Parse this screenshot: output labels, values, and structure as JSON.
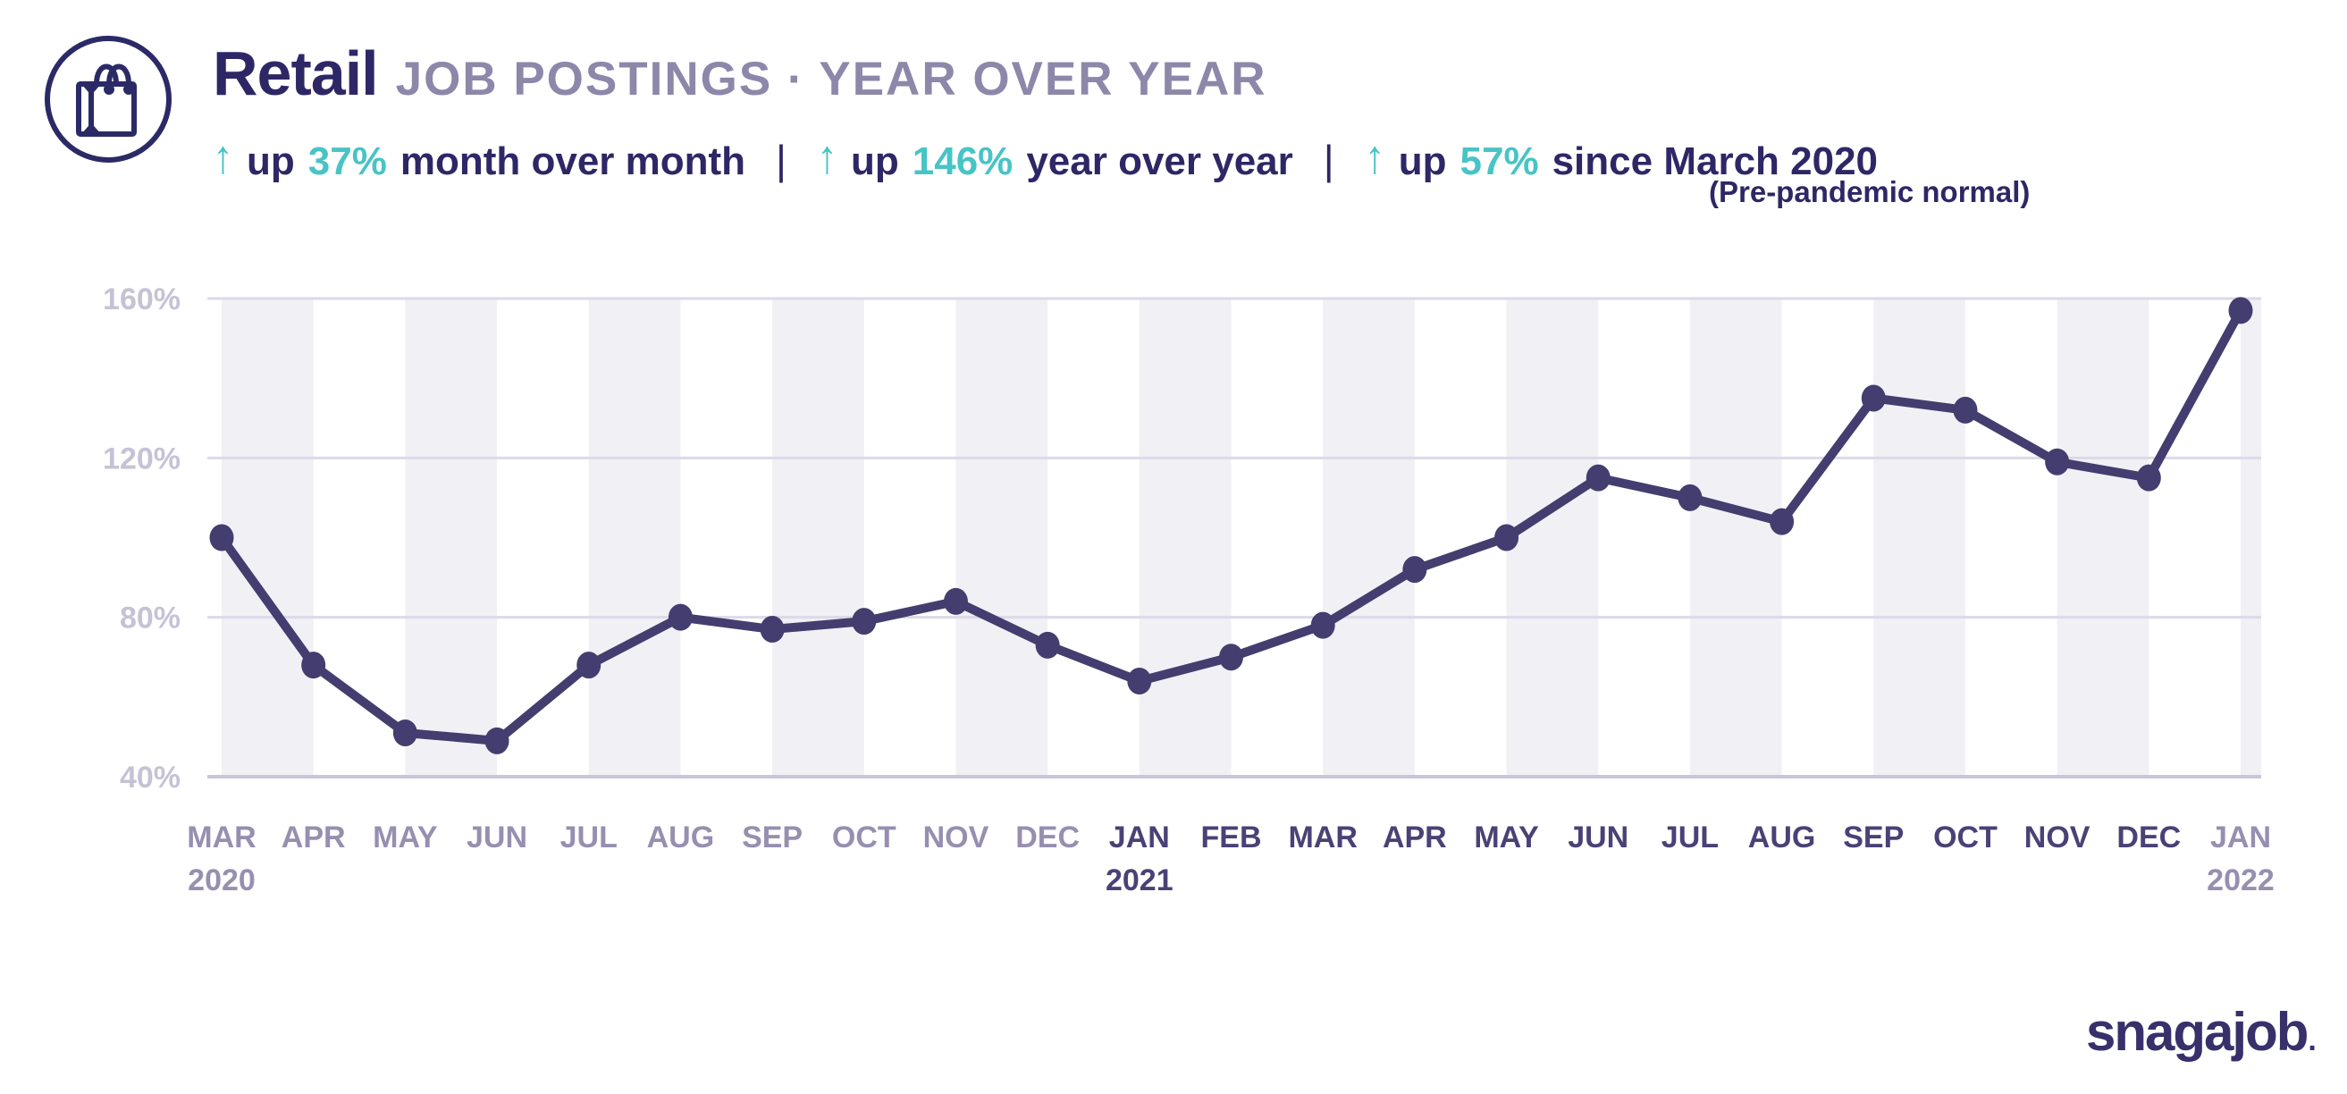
{
  "header": {
    "title": "Retail",
    "subtitle": "JOB POSTINGS · YEAR OVER YEAR",
    "stats": [
      {
        "arrow": "↑",
        "prefix": "up",
        "value": "37%",
        "suffix": "month over month"
      },
      {
        "arrow": "↑",
        "prefix": "up",
        "value": "146%",
        "suffix": "year over year"
      },
      {
        "arrow": "↑",
        "prefix": "up",
        "value": "57%",
        "suffix": "since March 2020"
      }
    ],
    "separator": "|",
    "note": "(Pre-pandemic normal)"
  },
  "chart_data": {
    "type": "line",
    "title": "Retail job postings, year over year",
    "categories": [
      {
        "month": "MAR",
        "year": "2020",
        "year_label": "2020"
      },
      {
        "month": "APR",
        "year": "2020",
        "year_label": ""
      },
      {
        "month": "MAY",
        "year": "2020",
        "year_label": ""
      },
      {
        "month": "JUN",
        "year": "2020",
        "year_label": ""
      },
      {
        "month": "JUL",
        "year": "2020",
        "year_label": ""
      },
      {
        "month": "AUG",
        "year": "2020",
        "year_label": ""
      },
      {
        "month": "SEP",
        "year": "2020",
        "year_label": ""
      },
      {
        "month": "OCT",
        "year": "2020",
        "year_label": ""
      },
      {
        "month": "NOV",
        "year": "2020",
        "year_label": ""
      },
      {
        "month": "DEC",
        "year": "2020",
        "year_label": ""
      },
      {
        "month": "JAN",
        "year": "2021",
        "year_label": "2021"
      },
      {
        "month": "FEB",
        "year": "2021",
        "year_label": ""
      },
      {
        "month": "MAR",
        "year": "2021",
        "year_label": ""
      },
      {
        "month": "APR",
        "year": "2021",
        "year_label": ""
      },
      {
        "month": "MAY",
        "year": "2021",
        "year_label": ""
      },
      {
        "month": "JUN",
        "year": "2021",
        "year_label": ""
      },
      {
        "month": "JUL",
        "year": "2021",
        "year_label": ""
      },
      {
        "month": "AUG",
        "year": "2021",
        "year_label": ""
      },
      {
        "month": "SEP",
        "year": "2021",
        "year_label": ""
      },
      {
        "month": "OCT",
        "year": "2021",
        "year_label": ""
      },
      {
        "month": "NOV",
        "year": "2021",
        "year_label": ""
      },
      {
        "month": "DEC",
        "year": "2021",
        "year_label": ""
      },
      {
        "month": "JAN",
        "year": "2022",
        "year_label": "2022"
      }
    ],
    "values": [
      100,
      68,
      51,
      49,
      68,
      80,
      77,
      79,
      84,
      73,
      64,
      70,
      78,
      92,
      100,
      115,
      110,
      104,
      135,
      132,
      119,
      115,
      157
    ],
    "unit": "%",
    "ylim": [
      40,
      160
    ],
    "yticks": [
      160,
      120,
      80,
      40
    ],
    "ytick_labels": [
      "160%",
      "120%",
      "80%",
      "40%"
    ],
    "grid": "horizontal",
    "background_bands": "alternating light month-pair bands starting at MAR 2020",
    "legend": "none"
  },
  "colors": {
    "ink": "#2E2766",
    "teal": "#47C4C6",
    "subtitle": "#8D87AA",
    "line": "#443D6F",
    "axis_label": "#C6C2D6",
    "month_2020": "#978FB0",
    "month_2021": "#4A4176",
    "month_2022": "#978FB0",
    "band": "#F1F0F5",
    "grid": "#DCD9E8",
    "axis": "#C9C6D8",
    "logo": "#37306B"
  },
  "logo": {
    "text": "snagajob",
    "dot": "."
  }
}
